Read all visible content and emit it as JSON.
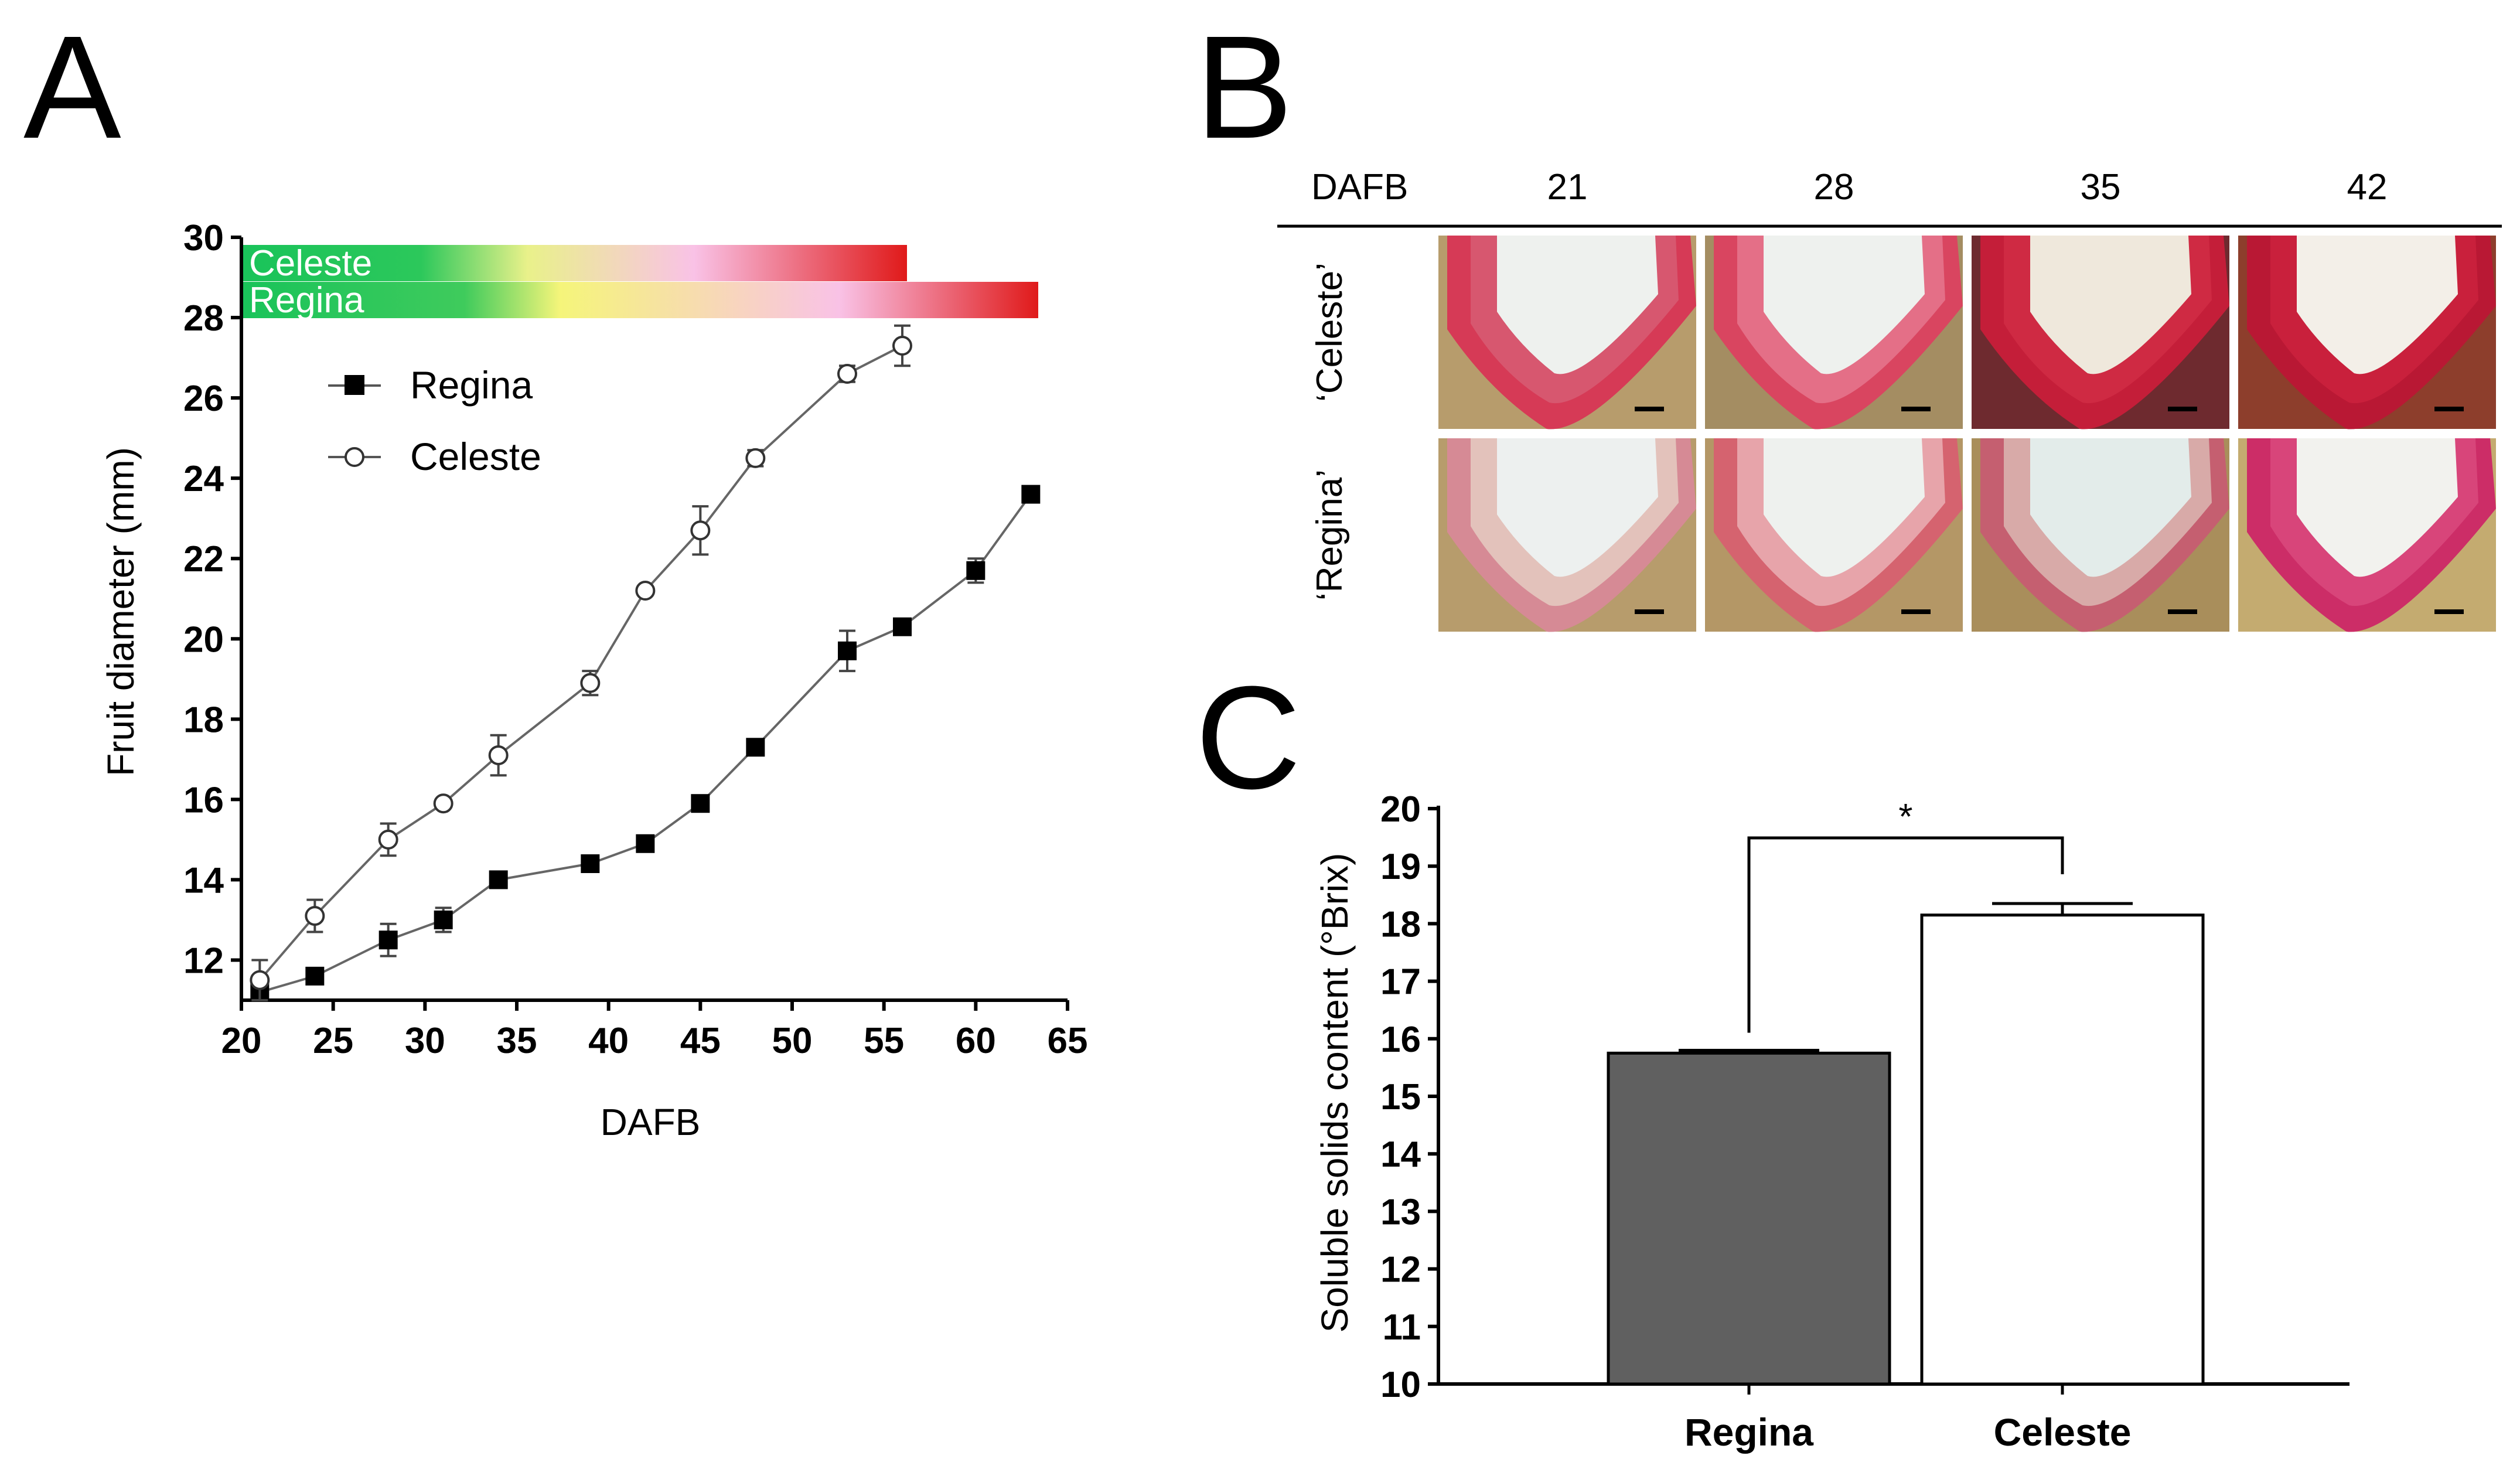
{
  "panel_labels": {
    "a": "A",
    "b": "B",
    "c": "C"
  },
  "chart_data": [
    {
      "panel": "A",
      "type": "line",
      "xlabel": "DAFB",
      "ylabel": "Fruit diameter (mm)",
      "xlim": [
        20,
        65
      ],
      "ylim": [
        11,
        30
      ],
      "xticks": [
        20,
        25,
        30,
        35,
        40,
        45,
        50,
        55,
        60,
        65
      ],
      "yticks": [
        12,
        14,
        16,
        18,
        20,
        22,
        24,
        26,
        28,
        30
      ],
      "legend": [
        "Regina",
        "Celeste"
      ],
      "ripening_bars": [
        {
          "name": "Celeste",
          "x_start": 20,
          "x_end": 56.5,
          "colors": [
            "#19c35a",
            "#e9f18a",
            "#f9c2e6",
            "#e01a1a"
          ]
        },
        {
          "name": "Regina",
          "x_start": 20,
          "x_end": 64,
          "colors": [
            "#19c35a",
            "#f5f57a",
            "#f9c2e6",
            "#e01a1a"
          ]
        }
      ],
      "series": [
        {
          "name": "Regina",
          "marker": "filled-square",
          "x": [
            21,
            24,
            28,
            31,
            34,
            39,
            42,
            45,
            48,
            53,
            56,
            60,
            63
          ],
          "y": [
            11.2,
            11.6,
            12.5,
            13.0,
            14.0,
            14.4,
            14.9,
            15.9,
            17.3,
            19.7,
            20.3,
            21.7,
            23.6
          ],
          "err": [
            0.1,
            0.1,
            0.4,
            0.3,
            0.1,
            0.1,
            0.1,
            0.1,
            0.1,
            0.5,
            0.1,
            0.3,
            0.1
          ]
        },
        {
          "name": "Celeste",
          "marker": "open-circle",
          "x": [
            21,
            24,
            28,
            31,
            34,
            39,
            42,
            45,
            48,
            53,
            56
          ],
          "y": [
            11.5,
            13.1,
            15.0,
            15.9,
            17.1,
            18.9,
            21.2,
            22.7,
            24.5,
            26.6,
            27.3
          ],
          "err": [
            0.5,
            0.4,
            0.4,
            0.1,
            0.5,
            0.3,
            0.1,
            0.6,
            0.2,
            0.2,
            0.5
          ]
        }
      ]
    },
    {
      "panel": "C",
      "type": "bar",
      "ylabel": "Soluble solids content (°Brix)",
      "ylim": [
        10,
        20
      ],
      "yticks": [
        10,
        11,
        12,
        13,
        14,
        15,
        16,
        17,
        18,
        19,
        20
      ],
      "categories": [
        "Regina",
        "Celeste"
      ],
      "values": [
        15.75,
        18.15
      ],
      "errors": [
        0.05,
        0.2
      ],
      "bar_colors": [
        "#606060",
        "#ffffff"
      ],
      "significance": "*"
    }
  ],
  "panel_b": {
    "header_label": "DAFB",
    "columns": [
      "21",
      "28",
      "35",
      "42"
    ],
    "rows": [
      "‘Celeste’",
      "‘Regina’"
    ],
    "photo_palette": {
      "Celeste": [
        {
          "flesh": "#d7576f",
          "skin": "#d63a56",
          "bg": "#b79c6c",
          "seed": "#eef1ee"
        },
        {
          "flesh": "#e46f87",
          "skin": "#d94560",
          "bg": "#a48d62",
          "seed": "#eef1ee"
        },
        {
          "flesh": "#cf2a43",
          "skin": "#c41e39",
          "bg": "#6e2a2f",
          "seed": "#efe8dc"
        },
        {
          "flesh": "#c9203c",
          "skin": "#b91834",
          "bg": "#8d3e2c",
          "seed": "#f3efe8"
        }
      ],
      "Regina": [
        {
          "flesh": "#e3c2bb",
          "skin": "#d68a95",
          "bg": "#b79c6c",
          "seed": "#edf0ef"
        },
        {
          "flesh": "#e7a4aa",
          "skin": "#d5636f",
          "bg": "#b49766",
          "seed": "#eef1ee"
        },
        {
          "flesh": "#d8aaa8",
          "skin": "#c55f70",
          "bg": "#a98e5b",
          "seed": "#e3ecea"
        },
        {
          "flesh": "#d8457a",
          "skin": "#cc2d67",
          "bg": "#c4ab70",
          "seed": "#f2f2ee"
        }
      ]
    }
  }
}
